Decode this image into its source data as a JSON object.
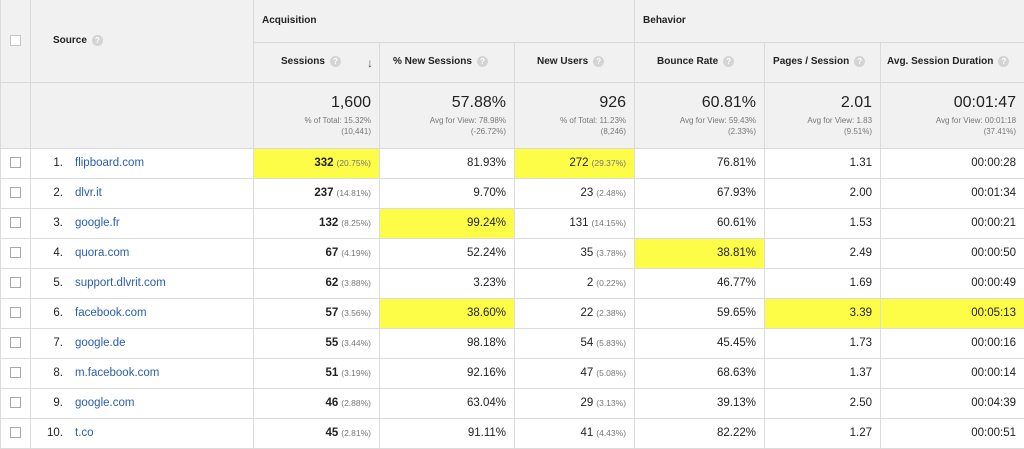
{
  "headers": {
    "source": "Source",
    "acquisition": "Acquisition",
    "behavior": "Behavior",
    "sessions": "Sessions",
    "new_sessions_pct": "% New Sessions",
    "new_users": "New Users",
    "bounce_rate": "Bounce Rate",
    "pages_session": "Pages / Session",
    "avg_duration": "Avg. Session Duration",
    "help_glyph": "?",
    "sort_glyph": "↓"
  },
  "totals": {
    "sessions": {
      "value": "1,600",
      "line1": "% of Total: 15.32%",
      "line2": "(10,441)"
    },
    "new_sessions_pct": {
      "value": "57.88%",
      "line1": "Avg for View: 78.98%",
      "line2": "(-26.72%)"
    },
    "new_users": {
      "value": "926",
      "line1": "% of Total: 11.23%",
      "line2": "(8,246)"
    },
    "bounce_rate": {
      "value": "60.81%",
      "line1": "Avg for View: 59.43%",
      "line2": "(2.33%)"
    },
    "pages_session": {
      "value": "2.01",
      "line1": "Avg for View: 1.83",
      "line2": "(9.51%)"
    },
    "avg_duration": {
      "value": "00:01:47",
      "line1": "Avg for View: 00:01:18",
      "line2": "(37.41%)"
    }
  },
  "rows": [
    {
      "idx": "1.",
      "source": "flipboard.com",
      "sessions": "332",
      "sessions_pct": "(20.75%)",
      "new_sessions": "81.93%",
      "new_users": "272",
      "new_users_pct": "(29.37%)",
      "bounce": "76.81%",
      "pages": "1.31",
      "duration": "00:00:28"
    },
    {
      "idx": "2.",
      "source": "dlvr.it",
      "sessions": "237",
      "sessions_pct": "(14.81%)",
      "new_sessions": "9.70%",
      "new_users": "23",
      "new_users_pct": "(2.48%)",
      "bounce": "67.93%",
      "pages": "2.00",
      "duration": "00:01:34"
    },
    {
      "idx": "3.",
      "source": "google.fr",
      "sessions": "132",
      "sessions_pct": "(8.25%)",
      "new_sessions": "99.24%",
      "new_users": "131",
      "new_users_pct": "(14.15%)",
      "bounce": "60.61%",
      "pages": "1.53",
      "duration": "00:00:21"
    },
    {
      "idx": "4.",
      "source": "quora.com",
      "sessions": "67",
      "sessions_pct": "(4.19%)",
      "new_sessions": "52.24%",
      "new_users": "35",
      "new_users_pct": "(3.78%)",
      "bounce": "38.81%",
      "pages": "2.49",
      "duration": "00:00:50"
    },
    {
      "idx": "5.",
      "source": "support.dlvrit.com",
      "sessions": "62",
      "sessions_pct": "(3.88%)",
      "new_sessions": "3.23%",
      "new_users": "2",
      "new_users_pct": "(0.22%)",
      "bounce": "46.77%",
      "pages": "1.69",
      "duration": "00:00:49"
    },
    {
      "idx": "6.",
      "source": "facebook.com",
      "sessions": "57",
      "sessions_pct": "(3.56%)",
      "new_sessions": "38.60%",
      "new_users": "22",
      "new_users_pct": "(2.38%)",
      "bounce": "59.65%",
      "pages": "3.39",
      "duration": "00:05:13"
    },
    {
      "idx": "7.",
      "source": "google.de",
      "sessions": "55",
      "sessions_pct": "(3.44%)",
      "new_sessions": "98.18%",
      "new_users": "54",
      "new_users_pct": "(5.83%)",
      "bounce": "45.45%",
      "pages": "1.73",
      "duration": "00:00:16"
    },
    {
      "idx": "8.",
      "source": "m.facebook.com",
      "sessions": "51",
      "sessions_pct": "(3.19%)",
      "new_sessions": "92.16%",
      "new_users": "47",
      "new_users_pct": "(5.08%)",
      "bounce": "68.63%",
      "pages": "1.37",
      "duration": "00:00:14"
    },
    {
      "idx": "9.",
      "source": "google.com",
      "sessions": "46",
      "sessions_pct": "(2.88%)",
      "new_sessions": "63.04%",
      "new_users": "29",
      "new_users_pct": "(3.13%)",
      "bounce": "39.13%",
      "pages": "2.50",
      "duration": "00:04:39"
    },
    {
      "idx": "10.",
      "source": "t.co",
      "sessions": "45",
      "sessions_pct": "(2.81%)",
      "new_sessions": "91.11%",
      "new_users": "41",
      "new_users_pct": "(4.43%)",
      "bounce": "82.22%",
      "pages": "1.27",
      "duration": "00:00:51"
    }
  ],
  "colors": {
    "highlight": "#fdfd47",
    "link": "#2a5db0",
    "header_bg": "#f1f1f1"
  }
}
